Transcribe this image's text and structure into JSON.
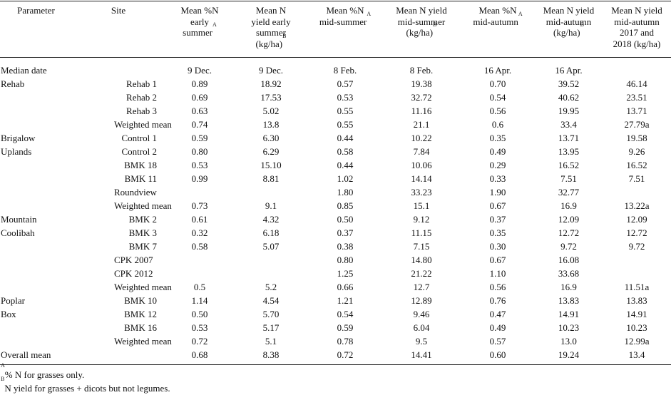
{
  "headers": [
    {
      "label": "Parameter",
      "sup": ""
    },
    {
      "label": "Site",
      "sup": ""
    },
    {
      "label": "Mean %N early summer",
      "sup": "A"
    },
    {
      "label": "Mean N yield early summer (kg/ha)",
      "sup": "B"
    },
    {
      "label": "Mean %N mid-summer",
      "sup": "A"
    },
    {
      "label": "Mean N yield mid-summer (kg/ha)",
      "sup": "B"
    },
    {
      "label": "Mean %N mid-autumn",
      "sup": "A"
    },
    {
      "label": "Mean N yield mid-autumn (kg/ha)",
      "sup": "B"
    },
    {
      "label": "Mean N yield mid-autumn 2017 and 2018 (kg/ha)",
      "sup": ""
    }
  ],
  "rows": [
    [
      "Median date",
      "",
      "9 Dec.",
      "9 Dec.",
      "8 Feb.",
      "8 Feb.",
      "16 Apr.",
      "16 Apr.",
      ""
    ],
    [
      "Rehab",
      "Rehab 1",
      "0.89",
      "18.92",
      "0.57",
      "19.38",
      "0.70",
      "39.52",
      "46.14"
    ],
    [
      "",
      "Rehab 2",
      "0.69",
      "17.53",
      "0.53",
      "32.72",
      "0.54",
      "40.62",
      "23.51"
    ],
    [
      "",
      "Rehab 3",
      "0.63",
      "5.02",
      "0.55",
      "11.16",
      "0.56",
      "19.95",
      "13.71"
    ],
    [
      "",
      "Weighted mean",
      "0.74",
      "13.8",
      "0.55",
      "21.1",
      "0.6",
      "33.4",
      "27.79a"
    ],
    [
      "Brigalow",
      "Control 1",
      "0.59",
      "6.30",
      "0.44",
      "10.22",
      "0.35",
      "13.71",
      "19.58"
    ],
    [
      "Uplands",
      "Control 2",
      "0.80",
      "6.29",
      "0.58",
      "7.84",
      "0.49",
      "13.95",
      "9.26"
    ],
    [
      "",
      "BMK 18",
      "0.53",
      "15.10",
      "0.44",
      "10.06",
      "0.29",
      "16.52",
      "16.52"
    ],
    [
      "",
      "BMK 11",
      "0.99",
      "8.81",
      "1.02",
      "14.14",
      "0.33",
      "7.51",
      "7.51"
    ],
    [
      "",
      "Roundview",
      "",
      "",
      "1.80",
      "33.23",
      "1.90",
      "32.77",
      ""
    ],
    [
      "",
      "Weighted mean",
      "0.73",
      "9.1",
      "0.85",
      "15.1",
      "0.67",
      "16.9",
      "13.22a"
    ],
    [
      "Mountain",
      "BMK 2",
      "0.61",
      "4.32",
      "0.50",
      "9.12",
      "0.37",
      "12.09",
      "12.09"
    ],
    [
      "Coolibah",
      "BMK 3",
      "0.32",
      "6.18",
      "0.37",
      "11.15",
      "0.35",
      "12.72",
      "12.72"
    ],
    [
      "",
      "BMK 7",
      "0.58",
      "5.07",
      "0.38",
      "7.15",
      "0.30",
      "9.72",
      "9.72"
    ],
    [
      "",
      "CPK 2007",
      "",
      "",
      "0.80",
      "14.80",
      "0.67",
      "16.08",
      ""
    ],
    [
      "",
      "CPK 2012",
      "",
      "",
      "1.25",
      "21.22",
      "1.10",
      "33.68",
      ""
    ],
    [
      "",
      "Weighted mean",
      "0.5",
      "5.2",
      "0.66",
      "12.7",
      "0.56",
      "16.9",
      "11.51a"
    ],
    [
      "Poplar",
      "BMK 10",
      "1.14",
      "4.54",
      "1.21",
      "12.89",
      "0.76",
      "13.83",
      "13.83"
    ],
    [
      "Box",
      "BMK 12",
      "0.50",
      "5.70",
      "0.54",
      "9.46",
      "0.47",
      "14.91",
      "14.91"
    ],
    [
      "",
      "BMK 16",
      "0.53",
      "5.17",
      "0.59",
      "6.04",
      "0.49",
      "10.23",
      "10.23"
    ],
    [
      "",
      "Weighted mean",
      "0.72",
      "5.1",
      "0.78",
      "9.5",
      "0.57",
      "13.0",
      "12.99a"
    ],
    [
      "Overall mean",
      "",
      "0.68",
      "8.38",
      "0.72",
      "14.41",
      "0.60",
      "19.24",
      "13.4"
    ]
  ],
  "footnotes": [
    {
      "mark": "A",
      "text": "% N for grasses only."
    },
    {
      "mark": "B",
      "text": "N yield for grasses + dicots but not legumes."
    }
  ]
}
